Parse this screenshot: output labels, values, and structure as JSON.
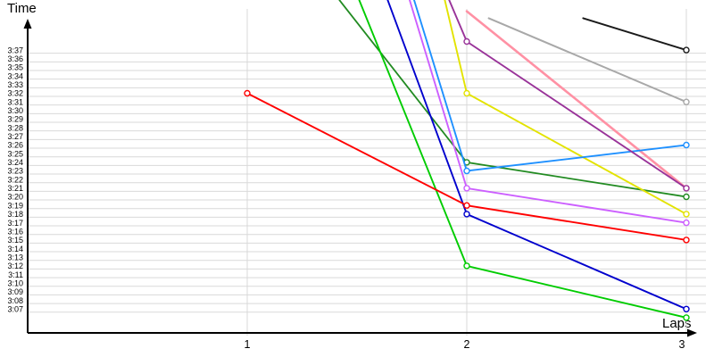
{
  "chart": {
    "y_axis_title": "Time",
    "x_axis_title": "Laps",
    "y_tick_labels": [
      "3:37",
      "3:36",
      "3:35",
      "3:34",
      "3:33",
      "3:32",
      "3:31",
      "3:30",
      "3:29",
      "3:28",
      "3:27",
      "3:26",
      "3:25",
      "3:24",
      "3:23",
      "3:22",
      "3:21",
      "3:20",
      "3:19",
      "3:18",
      "3:17",
      "3:16",
      "3:15",
      "3:14",
      "3:13",
      "3:12",
      "3:11",
      "3:10",
      "3:09",
      "3:08",
      "3:07"
    ],
    "x_tick_labels": [
      "1",
      "2",
      "3"
    ]
  },
  "chart_data": {
    "type": "line",
    "title": "",
    "xlabel": "Laps",
    "ylabel": "Time",
    "x": [
      1,
      2,
      3
    ],
    "y_axis": {
      "top_label": "3:37",
      "bottom_label": "3:07",
      "step_seconds": 1
    },
    "grid": true,
    "legend": false,
    "style": {
      "background": "#FFFFFF",
      "grid_color": "#D9D9D9",
      "axis_color": "#000000",
      "marker_fill": "#FFFFFF"
    },
    "series": [
      {
        "name": "gray",
        "color": "#A8A8A8",
        "width": 2.0,
        "points": [
          {
            "lap": 3,
            "time": "3:31"
          }
        ],
        "visible_start": {
          "lap": 2.1,
          "time_seconds": 220.7
        }
      },
      {
        "name": "black",
        "color": "#1A1A1A",
        "width": 2.0,
        "points": [
          {
            "lap": 3,
            "time": "3:37"
          }
        ],
        "visible_start": {
          "lap": 2.53,
          "time_seconds": 220.7
        }
      },
      {
        "name": "pink",
        "color": "#FF91A4",
        "width": 2.6,
        "points": [
          {
            "lap": 3,
            "time": "3:21"
          }
        ],
        "visible_start": {
          "lap": 2.0,
          "time_seconds": 221.5
        }
      },
      {
        "name": "dark-green",
        "color": "#228B22",
        "width": 1.8,
        "points": [
          {
            "lap": 2,
            "time": "3:24"
          },
          {
            "lap": 3,
            "time": "3:20"
          }
        ],
        "visible_start": {
          "lap": 1.42,
          "time_seconds": 222.8
        }
      },
      {
        "name": "yellow",
        "color": "#E3E300",
        "width": 1.9,
        "points": [
          {
            "lap": 2,
            "time": "3:32"
          },
          {
            "lap": 3,
            "time": "3:18"
          }
        ],
        "visible_start": {
          "lap": 1.9,
          "time_seconds": 222.8
        }
      },
      {
        "name": "cyan",
        "color": "#1E90FF",
        "width": 1.9,
        "points": [
          {
            "lap": 2,
            "time": "3:23"
          },
          {
            "lap": 3,
            "time": "3:26"
          }
        ],
        "visible_start": {
          "lap": 1.76,
          "time_seconds": 222.8
        }
      },
      {
        "name": "magenta",
        "color": "#CC5FFF",
        "width": 1.9,
        "points": [
          {
            "lap": 2,
            "time": "3:21"
          },
          {
            "lap": 3,
            "time": "3:17"
          }
        ],
        "visible_start": {
          "lap": 1.74,
          "time_seconds": 222.8
        }
      },
      {
        "name": "purple",
        "color": "#993399",
        "width": 1.9,
        "points": [
          {
            "lap": 2,
            "time": "3:38"
          },
          {
            "lap": 3,
            "time": "3:21"
          }
        ],
        "visible_start": {
          "lap": 1.92,
          "time_seconds": 222.8
        }
      },
      {
        "name": "green",
        "color": "#00CC00",
        "width": 1.9,
        "points": [
          {
            "lap": 2,
            "time": "3:12"
          },
          {
            "lap": 3,
            "time": "3:06"
          }
        ],
        "visible_start": {
          "lap": 1.51,
          "time_seconds": 222.8
        }
      },
      {
        "name": "blue",
        "color": "#0000CD",
        "width": 1.9,
        "points": [
          {
            "lap": 2,
            "time": "3:18"
          },
          {
            "lap": 3,
            "time": "3:07"
          }
        ],
        "visible_start": {
          "lap": 1.64,
          "time_seconds": 222.8
        }
      },
      {
        "name": "red",
        "color": "#FF0000",
        "width": 1.9,
        "points": [
          {
            "lap": 1,
            "time": "3:32"
          },
          {
            "lap": 2,
            "time": "3:19"
          },
          {
            "lap": 3,
            "time": "3:15"
          }
        ]
      }
    ]
  }
}
